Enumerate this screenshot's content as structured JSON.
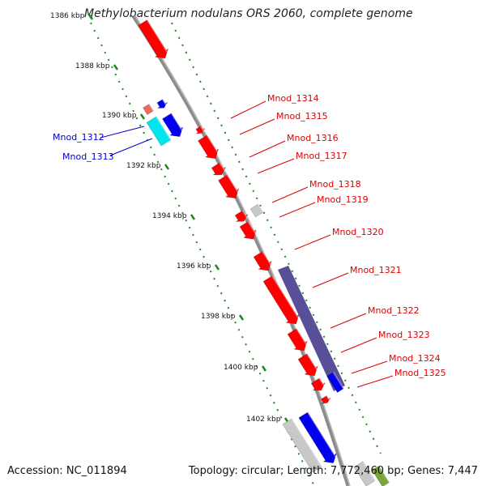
{
  "title": "Methylobacterium nodulans ORS 2060, complete genome",
  "footer": {
    "accession": "Accession: NC_011894",
    "summary": "Topology: circular; Length: 7,772,460 bp; Genes: 7,447"
  },
  "colors": {
    "forward_gene": "#ff0000",
    "reverse_gene": "#0000ee",
    "pseudo": "#c8c8c8",
    "cyan_feature": "#00e5ee",
    "region": "#4b3f8f",
    "scale_ticks": "#1b8a1b",
    "backbone": "#888888",
    "label_red": "#dd0000",
    "label_blue": "#0000cc"
  },
  "scale_ticks": [
    "1386 kbp",
    "1388 kbp",
    "1390 kbp",
    "1392 kbp",
    "1394 kbp",
    "1396 kbp",
    "1398 kbp",
    "1400 kbp",
    "1402 kbp"
  ],
  "gene_labels_right": [
    "Mnod_1314",
    "Mnod_1315",
    "Mnod_1316",
    "Mnod_1317",
    "Mnod_1318",
    "Mnod_1319",
    "Mnod_1320",
    "Mnod_1321",
    "Mnod_1322",
    "Mnod_1323",
    "Mnod_1324",
    "Mnod_1325"
  ],
  "gene_labels_left": [
    "Mnod_1312",
    "Mnod_1313"
  ]
}
